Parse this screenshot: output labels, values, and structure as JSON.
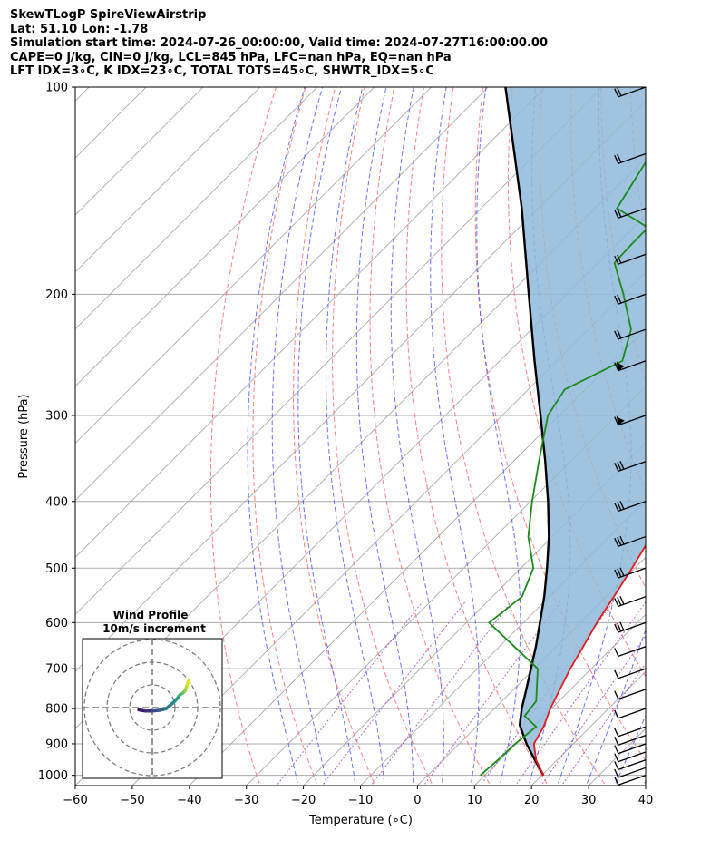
{
  "header": {
    "line1": "SkewTLogP SpireViewAirstrip",
    "line2": "Lat: 51.10   Lon: -1.78",
    "line3": "Simulation start time: 2024-07-26_00:00:00, Valid time: 2024-07-27T16:00:00.00",
    "line4": "CAPE=0 j/kg, CIN=0 j/kg, LCL=845 hPa, LFC=nan hPa, EQ=nan hPa",
    "line5": "LFT IDX=3∘C, K IDX=23∘C, TOTAL TOTS=45∘C, SHWTR_IDX=5∘C"
  },
  "colors": {
    "temperature": "#e31a1c",
    "dewpoint": "#1a8a1a",
    "parcel": "#000000",
    "shading": "#8fbad9",
    "dry_adiabat": "#ff5555",
    "moist_adiabat": "#3344ff",
    "mixing_ratio": "#9933bb",
    "isotherm": "#aaaaaa"
  },
  "chart_data": {
    "type": "line",
    "title": "SkewTLogP SpireViewAirstrip",
    "xlabel": "Temperature (∘C)",
    "ylabel": "Pressure (hPa)",
    "xlim": [
      -60,
      40
    ],
    "ylim": [
      1035,
      100
    ],
    "x_ticks": [
      "−60",
      "−50",
      "−40",
      "−30",
      "−20",
      "−10",
      "0",
      "10",
      "20",
      "30",
      "40"
    ],
    "x_tick_values": [
      -60,
      -50,
      -40,
      -30,
      -20,
      -10,
      0,
      10,
      20,
      30,
      40
    ],
    "y_ticks": [
      "100",
      "200",
      "300",
      "400",
      "500",
      "600",
      "700",
      "800",
      "900",
      "1000"
    ],
    "y_tick_values": [
      100,
      200,
      300,
      400,
      500,
      600,
      700,
      800,
      900,
      1000
    ],
    "series": [
      {
        "name": "Temperature",
        "values": [
          [
            1000,
            20.3
          ],
          [
            950,
            16.3
          ],
          [
            900,
            13.1
          ],
          [
            850,
            11.8
          ],
          [
            800,
            9.8
          ],
          [
            750,
            8.1
          ],
          [
            700,
            6.3
          ],
          [
            650,
            4.7
          ],
          [
            600,
            2.9
          ],
          [
            550,
            1.3
          ],
          [
            500,
            -0.5
          ],
          [
            450,
            -2.7
          ],
          [
            400,
            -7.5
          ],
          [
            350,
            -12.6
          ],
          [
            300,
            -19.3
          ],
          [
            275,
            -24.9
          ],
          [
            250,
            -32.4
          ],
          [
            225,
            -37.6
          ],
          [
            200,
            -42.1
          ],
          [
            175,
            -47.8
          ],
          [
            150,
            -50.3
          ],
          [
            125,
            -56.8
          ],
          [
            100,
            -66.1
          ]
        ]
      },
      {
        "name": "Dewpoint",
        "values": [
          [
            1000,
            9.2
          ],
          [
            950,
            9.6
          ],
          [
            900,
            9.8
          ],
          [
            850,
            10.5
          ],
          [
            820,
            6.6
          ],
          [
            780,
            6.0
          ],
          [
            700,
            0.6
          ],
          [
            650,
            -7.4
          ],
          [
            600,
            -16.0
          ],
          [
            550,
            -14.8
          ],
          [
            500,
            -17.8
          ],
          [
            450,
            -24.2
          ],
          [
            400,
            -29.7
          ],
          [
            350,
            -35.5
          ],
          [
            300,
            -42.0
          ],
          [
            275,
            -43.6
          ],
          [
            250,
            -38.5
          ],
          [
            225,
            -42.5
          ],
          [
            200,
            -50.0
          ],
          [
            180,
            -57.1
          ],
          [
            170,
            -57.3
          ],
          [
            160,
            -57.4
          ],
          [
            150,
            -66.2
          ],
          [
            125,
            -69.8
          ],
          [
            100,
            -82.1
          ]
        ]
      },
      {
        "name": "Parcel",
        "values": [
          [
            1000,
            20.3
          ],
          [
            950,
            16.1
          ],
          [
            900,
            11.8
          ],
          [
            845,
            7.3
          ],
          [
            800,
            4.8
          ],
          [
            750,
            2.2
          ],
          [
            700,
            -0.6
          ],
          [
            650,
            -3.6
          ],
          [
            600,
            -7.1
          ],
          [
            550,
            -10.9
          ],
          [
            500,
            -15.4
          ],
          [
            450,
            -20.6
          ],
          [
            400,
            -26.9
          ],
          [
            350,
            -34.4
          ],
          [
            300,
            -43.3
          ],
          [
            250,
            -53.9
          ],
          [
            200,
            -66.6
          ],
          [
            150,
            -82.9
          ],
          [
            100,
            -107.0
          ]
        ]
      }
    ],
    "wind_barb_levels": [
      1000,
      975,
      950,
      925,
      900,
      875,
      850,
      800,
      750,
      700,
      650,
      600,
      550,
      500,
      450,
      400,
      350,
      300,
      250,
      225,
      200,
      175,
      150,
      125,
      100
    ],
    "hodograph": {
      "title": "Wind Profile",
      "subtitle": "10m/s increment",
      "u": [
        -6,
        -3,
        0,
        3,
        6,
        9,
        11,
        12,
        13.5,
        14.5,
        15,
        15.5,
        16
      ],
      "v": [
        -1,
        -1.5,
        -1.5,
        -1.2,
        -0.5,
        2,
        4,
        5.5,
        6.5,
        7.5,
        9,
        10.5,
        12
      ]
    }
  }
}
